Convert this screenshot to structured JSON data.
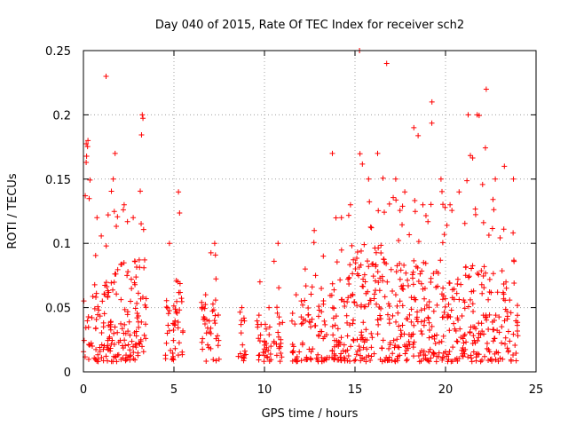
{
  "chart_data": {
    "type": "scatter",
    "title": "Day 040 of 2015, Rate Of TEC Index for receiver sch2",
    "xlabel": "GPS time / hours",
    "ylabel": "ROTI / TECUs",
    "xlim": [
      0,
      25
    ],
    "ylim": [
      0,
      0.25
    ],
    "grid": true,
    "x_ticks": [
      "0",
      "5",
      "10",
      "15",
      "20",
      "25"
    ],
    "y_ticks": [
      "0",
      "0.05",
      "0.1",
      "0.15",
      "0.2",
      "0.25"
    ],
    "marker": "+",
    "series_color": "#ff0000",
    "activity_bands": [
      {
        "hours": [
          0.0,
          0.5
        ],
        "typical": 0.03,
        "peak": 0.18
      },
      {
        "hours": [
          0.5,
          1.0
        ],
        "typical": 0.04,
        "peak": 0.12
      },
      {
        "hours": [
          1.0,
          1.5
        ],
        "typical": 0.06,
        "peak": 0.23
      },
      {
        "hours": [
          1.5,
          2.0
        ],
        "typical": 0.05,
        "peak": 0.17
      },
      {
        "hours": [
          2.0,
          2.5
        ],
        "typical": 0.05,
        "peak": 0.13
      },
      {
        "hours": [
          2.5,
          3.0
        ],
        "typical": 0.05,
        "peak": 0.12
      },
      {
        "hours": [
          3.0,
          3.5
        ],
        "typical": 0.05,
        "peak": 0.2
      },
      {
        "hours": [
          4.5,
          5.0
        ],
        "typical": 0.03,
        "peak": 0.1
      },
      {
        "hours": [
          5.0,
          5.5
        ],
        "typical": 0.04,
        "peak": 0.14
      },
      {
        "hours": [
          6.5,
          7.0
        ],
        "typical": 0.03,
        "peak": 0.06
      },
      {
        "hours": [
          7.0,
          7.5
        ],
        "typical": 0.03,
        "peak": 0.1
      },
      {
        "hours": [
          8.5,
          9.0
        ],
        "typical": 0.02,
        "peak": 0.05
      },
      {
        "hours": [
          9.5,
          10.0
        ],
        "typical": 0.02,
        "peak": 0.07
      },
      {
        "hours": [
          10.0,
          10.5
        ],
        "typical": 0.02,
        "peak": 0.05
      },
      {
        "hours": [
          10.5,
          11.0
        ],
        "typical": 0.03,
        "peak": 0.1
      },
      {
        "hours": [
          11.5,
          12.0
        ],
        "typical": 0.02,
        "peak": 0.06
      },
      {
        "hours": [
          12.0,
          12.5
        ],
        "typical": 0.03,
        "peak": 0.08
      },
      {
        "hours": [
          12.5,
          13.0
        ],
        "typical": 0.03,
        "peak": 0.11
      },
      {
        "hours": [
          13.0,
          13.5
        ],
        "typical": 0.03,
        "peak": 0.09
      },
      {
        "hours": [
          13.5,
          14.0
        ],
        "typical": 0.04,
        "peak": 0.17
      },
      {
        "hours": [
          14.0,
          14.5
        ],
        "typical": 0.04,
        "peak": 0.12
      },
      {
        "hours": [
          14.5,
          15.0
        ],
        "typical": 0.05,
        "peak": 0.13
      },
      {
        "hours": [
          15.0,
          15.5
        ],
        "typical": 0.06,
        "peak": 0.25
      },
      {
        "hours": [
          15.5,
          16.0
        ],
        "typical": 0.05,
        "peak": 0.15
      },
      {
        "hours": [
          16.0,
          16.5
        ],
        "typical": 0.05,
        "peak": 0.17
      },
      {
        "hours": [
          16.5,
          17.0
        ],
        "typical": 0.05,
        "peak": 0.24
      },
      {
        "hours": [
          17.0,
          17.5
        ],
        "typical": 0.05,
        "peak": 0.15
      },
      {
        "hours": [
          17.5,
          18.0
        ],
        "typical": 0.05,
        "peak": 0.14
      },
      {
        "hours": [
          18.0,
          18.5
        ],
        "typical": 0.05,
        "peak": 0.19
      },
      {
        "hours": [
          18.5,
          19.0
        ],
        "typical": 0.05,
        "peak": 0.13
      },
      {
        "hours": [
          19.0,
          19.5
        ],
        "typical": 0.05,
        "peak": 0.21
      },
      {
        "hours": [
          19.5,
          20.0
        ],
        "typical": 0.05,
        "peak": 0.15
      },
      {
        "hours": [
          20.0,
          20.5
        ],
        "typical": 0.04,
        "peak": 0.13
      },
      {
        "hours": [
          20.5,
          21.0
        ],
        "typical": 0.04,
        "peak": 0.14
      },
      {
        "hours": [
          21.0,
          21.5
        ],
        "typical": 0.05,
        "peak": 0.2
      },
      {
        "hours": [
          21.5,
          22.0
        ],
        "typical": 0.05,
        "peak": 0.2
      },
      {
        "hours": [
          22.0,
          22.5
        ],
        "typical": 0.05,
        "peak": 0.22
      },
      {
        "hours": [
          22.5,
          23.0
        ],
        "typical": 0.04,
        "peak": 0.15
      },
      {
        "hours": [
          23.0,
          23.5
        ],
        "typical": 0.04,
        "peak": 0.16
      },
      {
        "hours": [
          23.5,
          24.0
        ],
        "typical": 0.03,
        "peak": 0.15
      }
    ]
  }
}
